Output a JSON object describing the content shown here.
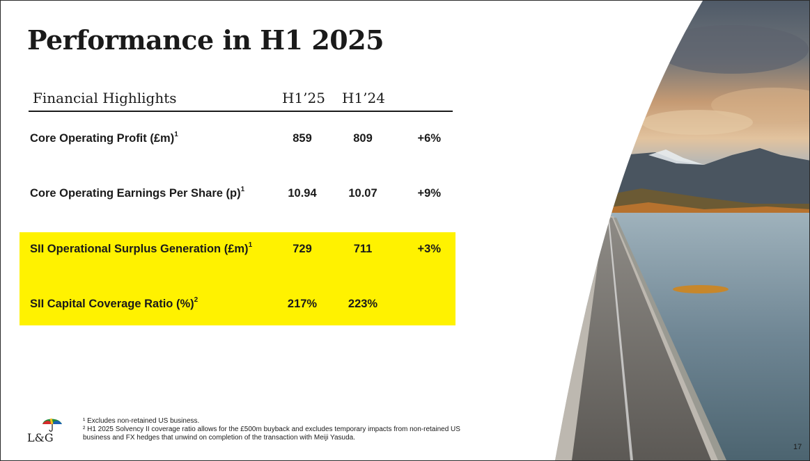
{
  "slide": {
    "title": "Performance in H1 2025",
    "page_number": "17"
  },
  "table": {
    "header": {
      "label": "Financial Highlights",
      "col1": "H1’25",
      "col2": "H1’24"
    },
    "rows": [
      {
        "label": "Core Operating Profit (£m)",
        "sup": "1",
        "h125": "859",
        "h124": "809",
        "change": "+6%",
        "highlighted": false
      },
      {
        "label": "Core Operating Earnings Per Share (p)",
        "sup": "1",
        "h125": "10.94",
        "h124": "10.07",
        "change": "+9%",
        "highlighted": false
      },
      {
        "label": "SII Operational Surplus Generation (£m)",
        "sup": "1",
        "h125": "729",
        "h124": "711",
        "change": "+3%",
        "highlighted": true
      },
      {
        "label": "SII Capital Coverage Ratio (%)",
        "sup": "2",
        "h125": "217%",
        "h124": "223%",
        "change": "",
        "highlighted": true
      }
    ],
    "highlight_color": "#fff200"
  },
  "footnotes": [
    "¹ Excludes non-retained US business.",
    "² H1 2025 Solvency II coverage ratio allows for the £500m buyback and excludes temporary impacts from non-retained US",
    "business and FX hedges that unwind on completion of the transaction with Meiji Yasuda."
  ],
  "logo": {
    "text": "L&G",
    "icon": "umbrella-icon"
  }
}
